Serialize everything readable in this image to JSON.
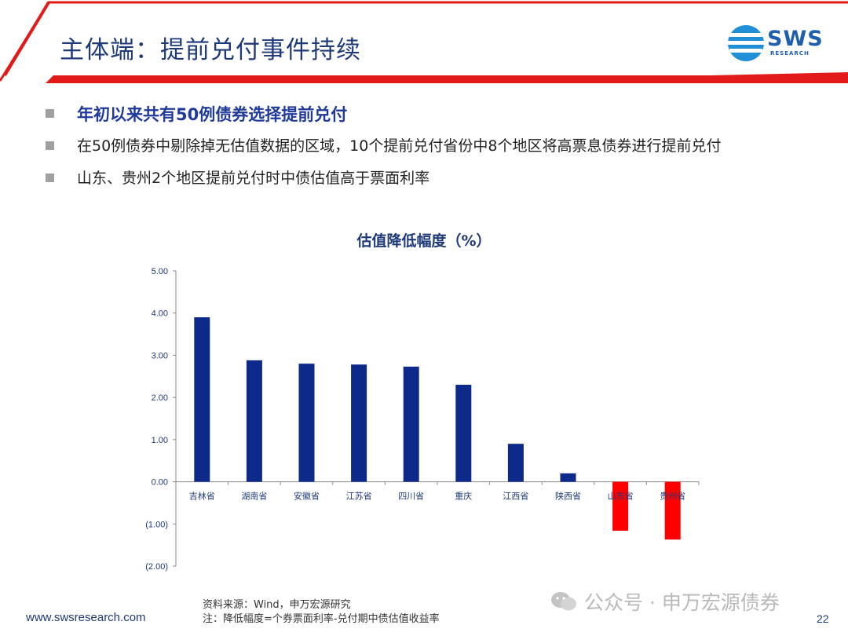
{
  "header": {
    "title": "主体端：提前兑付事件持续",
    "logo_text": "SWS",
    "logo_sub": "RESEARCH",
    "accent_color": "#e21a1a",
    "brand_color": "#1f5fb0"
  },
  "bullets": [
    "年初以来共有50例债券选择提前兑付",
    "在50例债券中剔除掉无估值数据的区域，10个提前兑付省份中8个地区将高票息债券进行提前兑付",
    "山东、贵州2个地区提前兑付时中债估值高于票面利率"
  ],
  "chart_data": {
    "type": "bar",
    "title": "估值降低幅度（%）",
    "categories": [
      "吉林省",
      "湖南省",
      "安徽省",
      "江苏省",
      "四川省",
      "重庆",
      "江西省",
      "陕西省",
      "山东省",
      "贵州省"
    ],
    "values": [
      3.9,
      2.88,
      2.8,
      2.78,
      2.73,
      2.3,
      0.9,
      0.2,
      -1.16,
      -1.37
    ],
    "ylim": [
      -2.0,
      5.0
    ],
    "yticks": [
      "5.00",
      "4.00",
      "3.00",
      "2.00",
      "1.00",
      "0.00",
      "(1.00)",
      "(2.00)"
    ],
    "ytick_values": [
      5,
      4,
      3,
      2,
      1,
      0,
      -1,
      -2
    ],
    "positive_color": "#0d2a8a",
    "negative_color": "#ff0000",
    "grid": false,
    "legend": "none"
  },
  "footer": {
    "url": "www.swsresearch.com",
    "source": "资料来源：Wind，申万宏源研究",
    "note": "注：降低幅度=个券票面利率-兑付期中债估值收益率",
    "page": "22",
    "watermark": "公众号 · 申万宏源债券"
  }
}
